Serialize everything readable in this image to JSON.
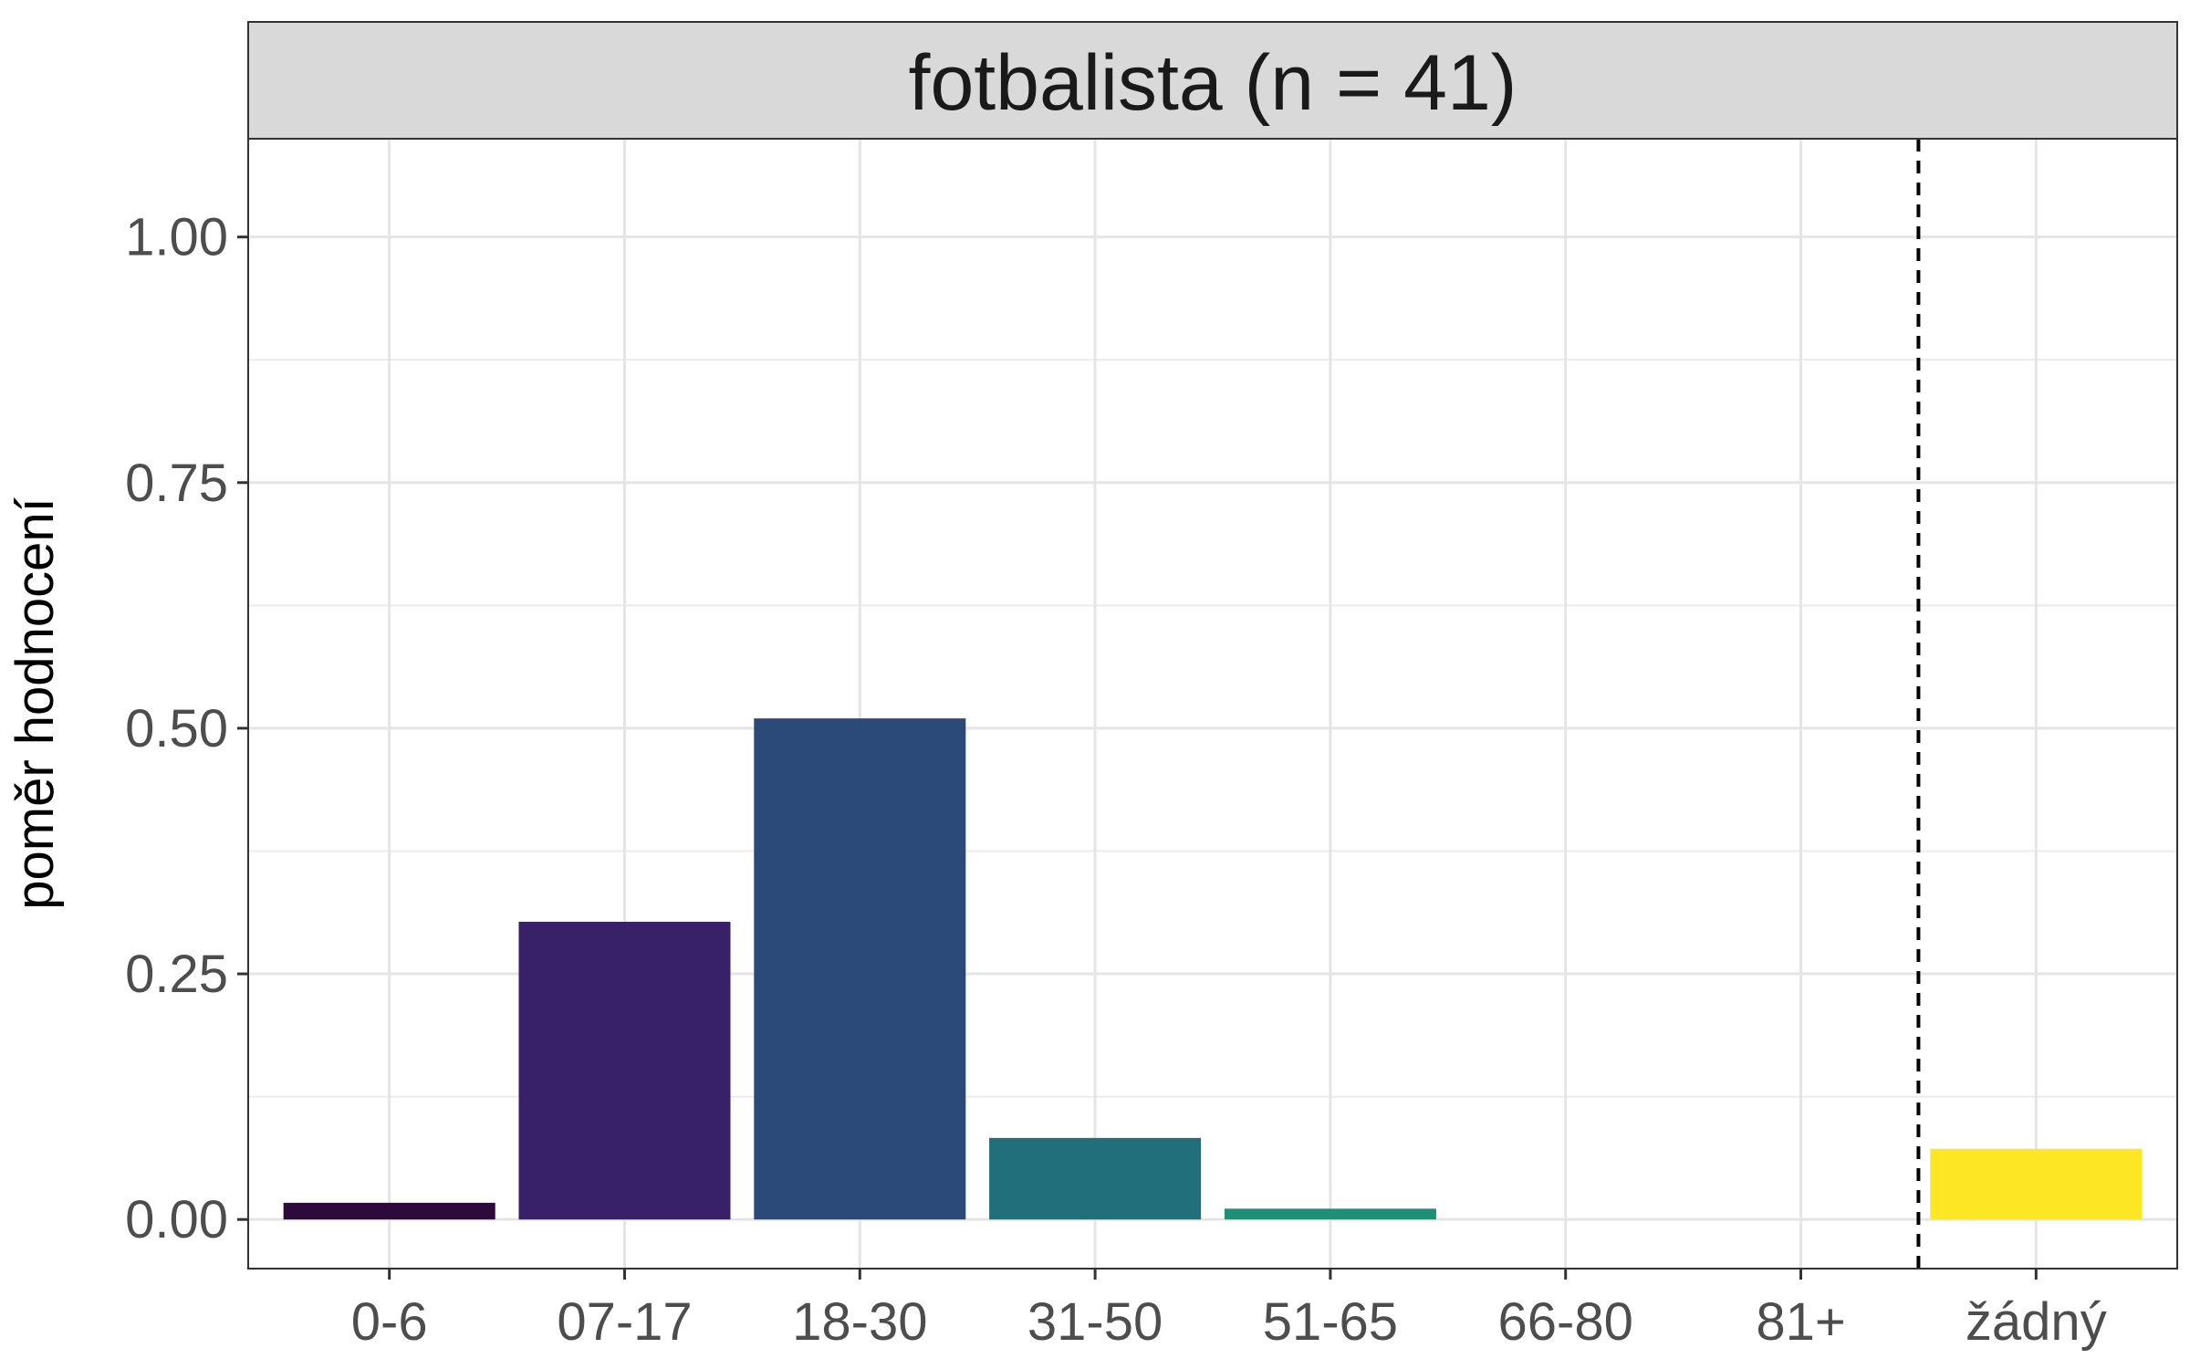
{
  "chart_data": {
    "type": "bar",
    "facet_label": "fotbalista (n = 41)",
    "ylabel": "poměr hodnocení",
    "xlabel": "",
    "categories": [
      "0-6",
      "07-17",
      "18-30",
      "31-50",
      "51-65",
      "66-80",
      "81+",
      "žádný"
    ],
    "values": [
      0.017,
      0.303,
      0.51,
      0.083,
      0.011,
      0,
      0,
      0.072
    ],
    "colors": [
      "#2d0a3c",
      "#382168",
      "#2c4a79",
      "#216f7b",
      "#1f8f75",
      "#25a86f",
      "#7bd04b",
      "#fde725"
    ],
    "ylim": [
      -0.05,
      1.1
    ],
    "yticks": [
      0,
      0.25,
      0.5,
      0.75,
      1.0
    ],
    "ytick_labels": [
      "0.00",
      "0.25",
      "0.50",
      "0.75",
      "1.00"
    ],
    "separator_after_category": "81+",
    "grid": true
  }
}
